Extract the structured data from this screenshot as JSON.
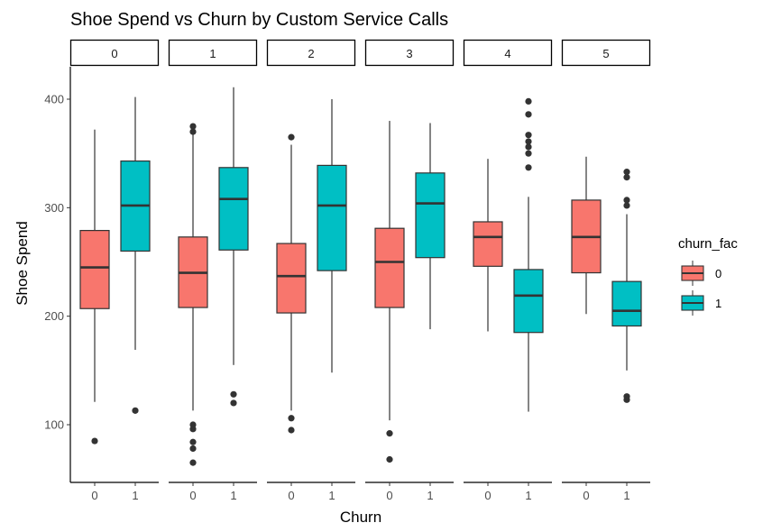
{
  "chart_data": {
    "type": "box",
    "title": "Shoe Spend vs Churn by Custom Service Calls",
    "xlabel": "Churn",
    "ylabel": "Shoe Spend",
    "ylim": [
      50,
      420
    ],
    "yticks": [
      100,
      200,
      300,
      400
    ],
    "categories": [
      "0",
      "1"
    ],
    "grid": false,
    "facet_variable_values": [
      "0",
      "1",
      "2",
      "3",
      "4",
      "5"
    ],
    "legend": {
      "title": "churn_fac",
      "position": "right",
      "entries": [
        {
          "label": "0",
          "color": "#F8766D"
        },
        {
          "label": "1",
          "color": "#00BFC4"
        }
      ]
    },
    "facets": [
      {
        "label": "0",
        "boxes": [
          {
            "churn": "0",
            "whisker_low": 121,
            "q1": 207,
            "median": 245,
            "q3": 279,
            "whisker_high": 372,
            "outliers": [
              85
            ]
          },
          {
            "churn": "1",
            "whisker_low": 169,
            "q1": 260,
            "median": 302,
            "q3": 343,
            "whisker_high": 402,
            "outliers": [
              113
            ]
          }
        ]
      },
      {
        "label": "1",
        "boxes": [
          {
            "churn": "0",
            "whisker_low": 113,
            "q1": 208,
            "median": 240,
            "q3": 273,
            "whisker_high": 368,
            "outliers": [
              65,
              78,
              84,
              96,
              100,
              370,
              375
            ]
          },
          {
            "churn": "1",
            "whisker_low": 155,
            "q1": 261,
            "median": 308,
            "q3": 337,
            "whisker_high": 411,
            "outliers": [
              120,
              128
            ]
          }
        ]
      },
      {
        "label": "2",
        "boxes": [
          {
            "churn": "0",
            "whisker_low": 113,
            "q1": 203,
            "median": 237,
            "q3": 267,
            "whisker_high": 358,
            "outliers": [
              95,
              106,
              365
            ]
          },
          {
            "churn": "1",
            "whisker_low": 148,
            "q1": 242,
            "median": 302,
            "q3": 339,
            "whisker_high": 400,
            "outliers": []
          }
        ]
      },
      {
        "label": "3",
        "boxes": [
          {
            "churn": "0",
            "whisker_low": 104,
            "q1": 208,
            "median": 250,
            "q3": 281,
            "whisker_high": 380,
            "outliers": [
              68,
              92
            ]
          },
          {
            "churn": "1",
            "whisker_low": 188,
            "q1": 254,
            "median": 304,
            "q3": 332,
            "whisker_high": 378,
            "outliers": []
          }
        ]
      },
      {
        "label": "4",
        "boxes": [
          {
            "churn": "0",
            "whisker_low": 186,
            "q1": 246,
            "median": 273,
            "q3": 287,
            "whisker_high": 345,
            "outliers": []
          },
          {
            "churn": "1",
            "whisker_low": 112,
            "q1": 185,
            "median": 219,
            "q3": 243,
            "whisker_high": 310,
            "outliers": [
              337,
              350,
              356,
              361,
              367,
              386,
              398
            ]
          }
        ]
      },
      {
        "label": "5",
        "boxes": [
          {
            "churn": "0",
            "whisker_low": 202,
            "q1": 240,
            "median": 273,
            "q3": 307,
            "whisker_high": 347,
            "outliers": []
          },
          {
            "churn": "1",
            "whisker_low": 150,
            "q1": 191,
            "median": 205,
            "q3": 232,
            "whisker_high": 294,
            "outliers": [
              123,
              126,
              302,
              307,
              328,
              333
            ]
          }
        ]
      }
    ]
  }
}
